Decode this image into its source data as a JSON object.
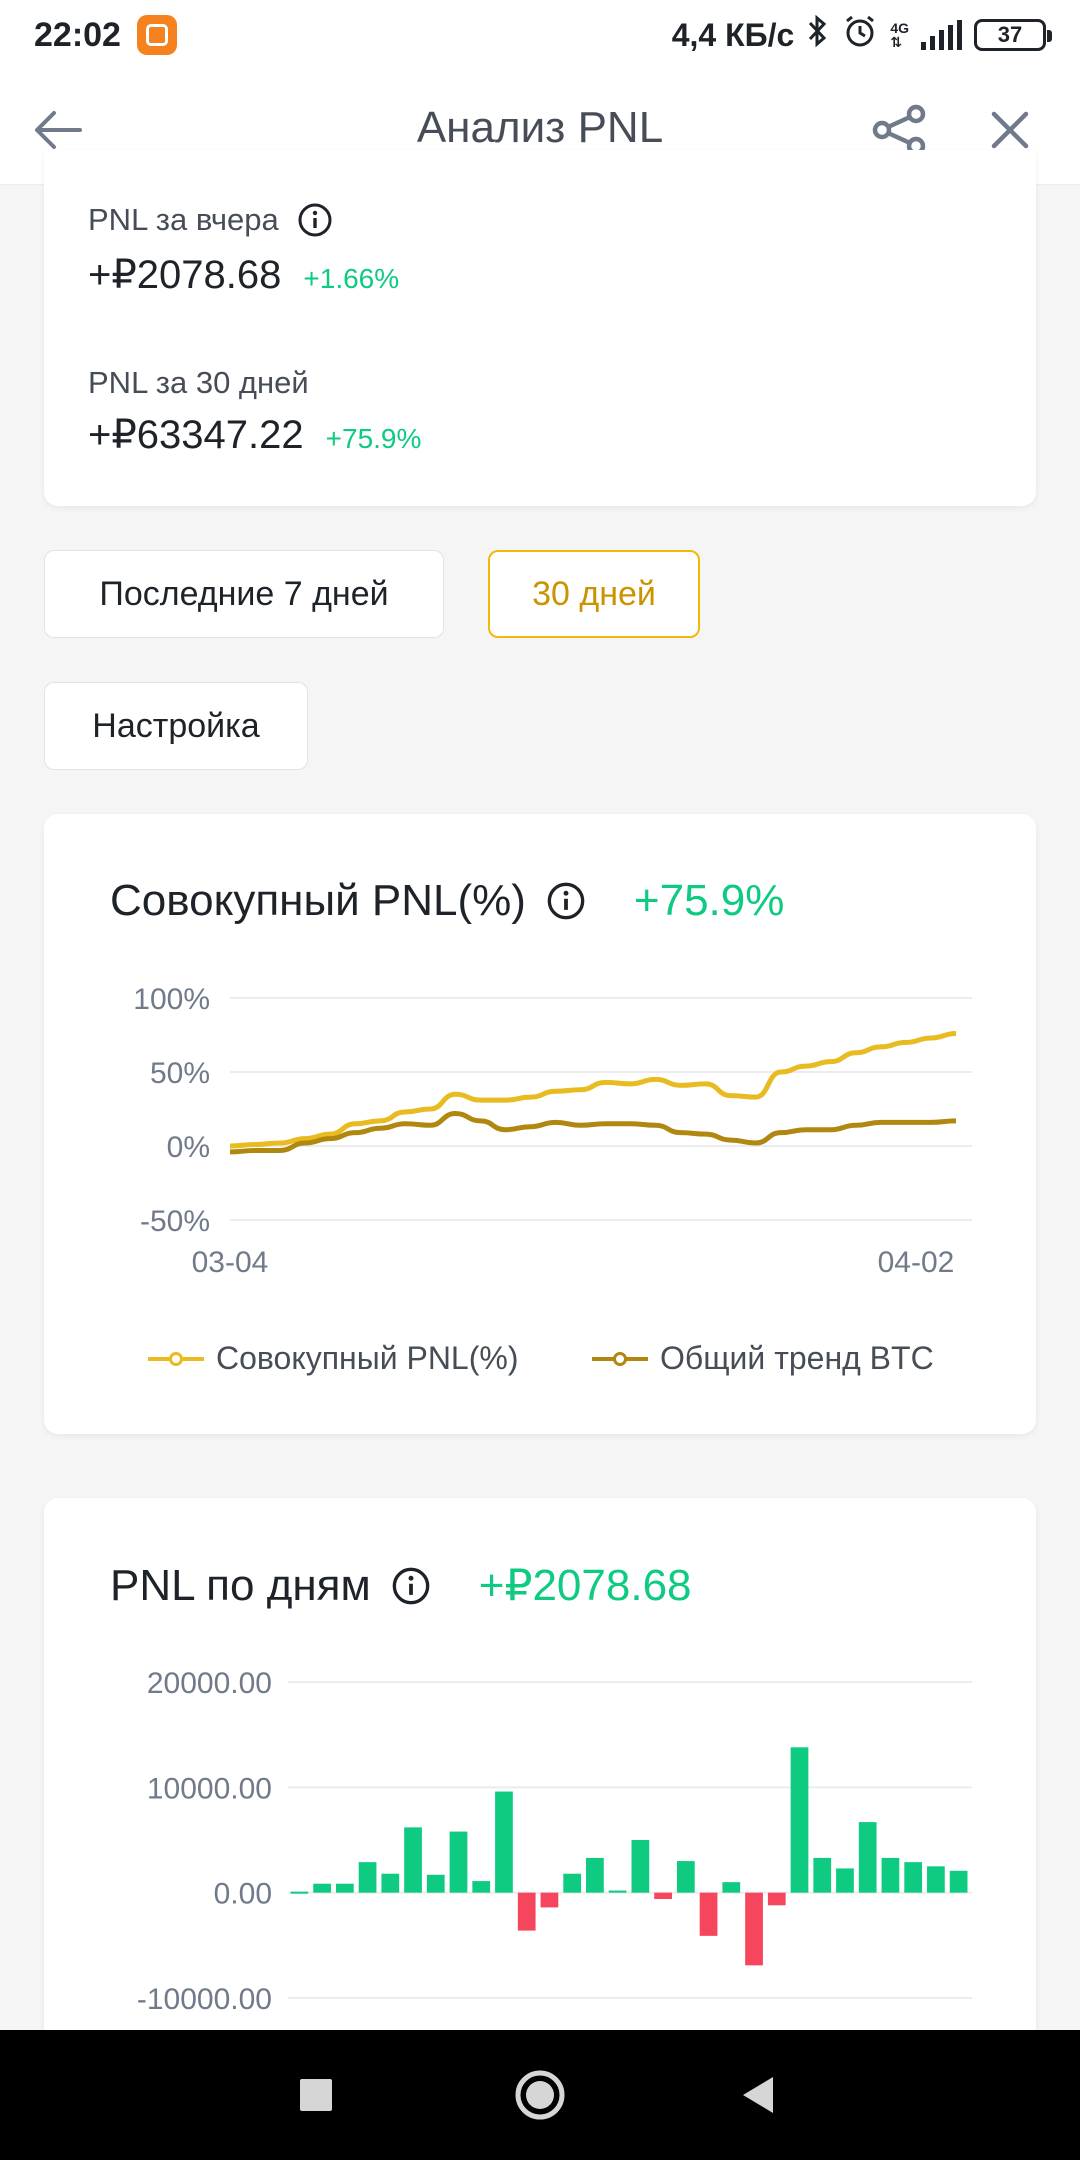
{
  "status_bar": {
    "time": "22:02",
    "speed": "4,4 КБ/с",
    "network": "4G",
    "battery": "37",
    "icons": [
      "mi-app-icon",
      "bluetooth-icon",
      "alarm-icon",
      "signal-icon",
      "battery-icon"
    ]
  },
  "header": {
    "title": "Анализ PNL",
    "icons": [
      "back-arrow-icon",
      "share-icon",
      "close-icon"
    ]
  },
  "summary": {
    "yesterday_label": "PNL за вчера",
    "yesterday_value": "+₽2078.68",
    "yesterday_pct": "+1.66%",
    "month_label": "PNL за 30 дней",
    "month_value": "+₽63347.22",
    "month_pct": "+75.9%"
  },
  "filters": {
    "last7": "Последние 7 дней",
    "days30": "30 дней",
    "settings": "Настройка",
    "selected": "30 дней"
  },
  "colors": {
    "accent": "#f0b90b",
    "positive": "#0ecb81",
    "negative": "#f6465d",
    "cumulative_line": "#e8bb21",
    "btc_line": "#b0880f"
  },
  "cumulative_card": {
    "title": "Совокупный PNL(%)",
    "value": "+75.9%",
    "legend": {
      "series1": "Совокупный PNL(%)",
      "series2": "Общий тренд BTC"
    }
  },
  "daily_card": {
    "title": "PNL по дням",
    "value": "+₽2078.68"
  },
  "chart_data": [
    {
      "type": "line",
      "title": "Совокупный PNL(%)",
      "x_tick_labels": [
        "03-04",
        "04-02"
      ],
      "y_tick_labels": [
        "100%",
        "50%",
        "0%",
        "-50%"
      ],
      "ylim": [
        -50,
        100
      ],
      "grid": true,
      "legend_position": "bottom",
      "series": [
        {
          "name": "Совокупный PNL(%)",
          "values": [
            0,
            1,
            2,
            5,
            8,
            15,
            17,
            23,
            25,
            35,
            31,
            31,
            33,
            37,
            38,
            43,
            42,
            45,
            41,
            42,
            34,
            33,
            50,
            54,
            57,
            63,
            67,
            70,
            73,
            76
          ]
        },
        {
          "name": "Общий тренд BTC",
          "values": [
            -4,
            -3,
            -3,
            2,
            5,
            9,
            12,
            15,
            14,
            22,
            17,
            11,
            13,
            16,
            14,
            15,
            15,
            14,
            9,
            8,
            4,
            2,
            9,
            11,
            11,
            14,
            16,
            16,
            16,
            17
          ]
        }
      ]
    },
    {
      "type": "bar",
      "title": "PNL по дням",
      "y_tick_labels": [
        "20000.00",
        "10000.00",
        "0.00",
        "-10000.00"
      ],
      "ylim": [
        -10000,
        20000
      ],
      "grid": true,
      "values": [
        0,
        850,
        850,
        2900,
        1800,
        6200,
        1700,
        5800,
        1100,
        9600,
        -3600,
        -1400,
        1800,
        3300,
        200,
        5000,
        -600,
        3000,
        -4100,
        1000,
        -6900,
        -1200,
        13800,
        3300,
        2300,
        6700,
        3300,
        2900,
        2500,
        2078.68
      ]
    }
  ]
}
